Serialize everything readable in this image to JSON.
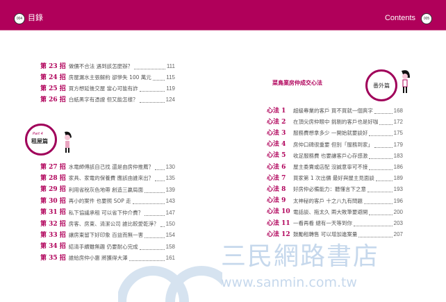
{
  "header": {
    "left_page": "004",
    "left_title": "目錄",
    "right_title": "Contents",
    "right_page": "005",
    "color": "#b0005a"
  },
  "left": {
    "items_top": [
      {
        "label": "第 23 招",
        "text": "做價不合法 遇到該怎麼辦？",
        "page": "111"
      },
      {
        "label": "第 24 招",
        "text": "房屋漏水主張解約 卻慘失 100 萬元",
        "page": "115"
      },
      {
        "label": "第 25 招",
        "text": "買方想延後交屋 當心可能有詐",
        "page": "119"
      },
      {
        "label": "第 26 招",
        "text": "白紙黑字有憑證 但又能怎樣？",
        "page": "124"
      }
    ],
    "part": {
      "part_label": "Part 4",
      "title": "租屋篇"
    },
    "items": [
      {
        "label": "第 27 招",
        "text": "水電師傅該自己找 還是由房仲推薦？",
        "page": "130"
      },
      {
        "label": "第 28 招",
        "text": "家具、家電的保養費 應該由誰來出？",
        "page": "135"
      },
      {
        "label": "第 29 招",
        "text": "利用省稅灰色地帶 創造三贏局面",
        "page": "139"
      },
      {
        "label": "第 30 招",
        "text": "再小的案件 也要照 SOP 走",
        "page": "143"
      },
      {
        "label": "第 31 招",
        "text": "私下協議承租 可以省下仲介費？",
        "page": "147"
      },
      {
        "label": "第 32 招",
        "text": "房客、房東、清潔公司 誰比較愛乾淨？",
        "page": "150"
      },
      {
        "label": "第 33 招",
        "text": "讓房東留下好印象 百益而無一害",
        "page": "154"
      },
      {
        "label": "第 34 招",
        "text": "結清手續雖無趣 仍要耐心完成",
        "page": "158"
      },
      {
        "label": "第 35 招",
        "text": "誰給房仲小惠 將獲得大澤",
        "page": "161"
      }
    ]
  },
  "right": {
    "section_title": "菜鳥業房仲成交心法",
    "badge": "番外篇",
    "items": [
      {
        "label": "心法 1",
        "text": "超級專業的客戶 買不買就一個爽字",
        "page": "168"
      },
      {
        "label": "心法 2",
        "text": "在頂尖房仲眼中 挑剔的客戶也是好咖",
        "page": "172"
      },
      {
        "label": "心法 3",
        "text": "服務費想拿多少 一開始就要談好",
        "page": "175"
      },
      {
        "label": "心法 4",
        "text": "房仲口碑很重要 但別「服務到家」",
        "page": "179"
      },
      {
        "label": "心法 5",
        "text": "收足服務費 也要讓客戶心存感激",
        "page": "183"
      },
      {
        "label": "心法 6",
        "text": "屋主委賣或店配 沒誠意寧可不接",
        "page": "186"
      },
      {
        "label": "心法 7",
        "text": "買家第 1 次出價 最好與屋主見面談",
        "page": "189"
      },
      {
        "label": "心法 8",
        "text": "好房仲必備能力：聽懂言下之意",
        "page": "193"
      },
      {
        "label": "心法 9",
        "text": "太神秘的客戶 十之八九有問題",
        "page": "196"
      },
      {
        "label": "心法 10",
        "text": "電話談、拖太久 兩大敗筆要避開",
        "page": "200"
      },
      {
        "label": "心法 11",
        "text": "一看再看 總有一天等到你",
        "page": "203"
      },
      {
        "label": "心法 12",
        "text": "鼓勵租轉售 可以增加進案量",
        "page": "207"
      }
    ]
  },
  "watermark": {
    "name": "三民網路書店",
    "url": "www.sanmin.com.tw",
    "logo_chars": [
      "三",
      "民"
    ]
  }
}
